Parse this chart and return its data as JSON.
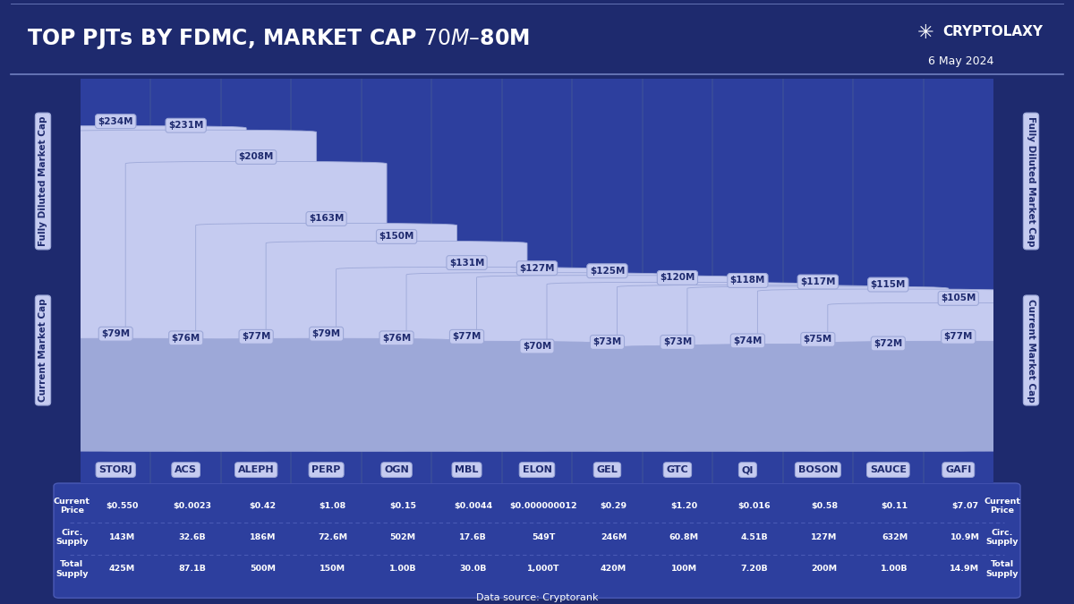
{
  "title": "TOP PJTs BY FDMC, MARKET CAP $70M – $80M",
  "date": "6 May 2024",
  "brand": "CRYPTOLAXY",
  "datasource": "Data source: Cryptorank",
  "categories": [
    "STORJ",
    "ACS",
    "ALEPH",
    "PERP",
    "OGN",
    "MBL",
    "ELON",
    "GEL",
    "GTC",
    "QI",
    "BOSON",
    "SAUCE",
    "GAFI"
  ],
  "fdmc": [
    234,
    231,
    208,
    163,
    150,
    131,
    127,
    125,
    120,
    118,
    117,
    115,
    105
  ],
  "mcap": [
    79,
    76,
    77,
    79,
    76,
    77,
    70,
    73,
    73,
    74,
    75,
    72,
    77
  ],
  "fdmc_labels": [
    "$234M",
    "$231M",
    "$208M",
    "$163M",
    "$150M",
    "$131M",
    "$127M",
    "$125M",
    "$120M",
    "$118M",
    "$117M",
    "$115M",
    "$105M"
  ],
  "mcap_labels": [
    "$79M",
    "$76M",
    "$77M",
    "$79M",
    "$76M",
    "$77M",
    "$70M",
    "$73M",
    "$73M",
    "$74M",
    "$75M",
    "$72M",
    "$77M"
  ],
  "current_price": [
    "$0.550",
    "$0.0023",
    "$0.42",
    "$1.08",
    "$0.15",
    "$0.0044",
    "$0.000000012",
    "$0.29",
    "$1.20",
    "$0.016",
    "$0.58",
    "$0.11",
    "$7.07"
  ],
  "circ_supply": [
    "143M",
    "32.6B",
    "186M",
    "72.6M",
    "502M",
    "17.6B",
    "549T",
    "246M",
    "60.8M",
    "4.51B",
    "127M",
    "632M",
    "10.9M"
  ],
  "total_supply": [
    "425M",
    "87.1B",
    "500M",
    "150M",
    "1.00B",
    "30.0B",
    "1,000T",
    "420M",
    "100M",
    "7.20B",
    "200M",
    "1.00B",
    "14.9M"
  ],
  "bg_color": "#1e2a6e",
  "chart_bg": "#2d3f9e",
  "bar_fdmc_color": "#c5cbf0",
  "bar_mcap_color": "#9da8d8",
  "sep_color": "#3a4d9a",
  "text_white": "#ffffff",
  "label_dark": "#1e2a6e",
  "badge_fill": "#c5cbf0",
  "badge_edge": "#9da8d8",
  "cat_fill": "#c5cbf0",
  "side_label_fill": "#c5cbf0",
  "left_label_top": "Fully Diluted Market Cap",
  "left_label_bottom": "Current Market Cap",
  "right_label_top": "Fully Diluted Market Cap",
  "right_label_bottom": "Current Market Cap",
  "title_line_color": "#7080c0",
  "table_sep_color": "#4a5ab5"
}
